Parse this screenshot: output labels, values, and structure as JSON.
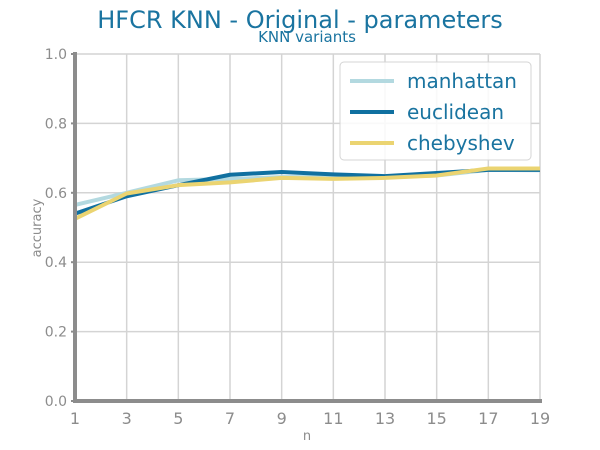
{
  "chart_data": {
    "type": "line",
    "title": "HFCR KNN - Original - parameters",
    "subtitle": "KNN variants",
    "xlabel": "n",
    "ylabel": "accuracy",
    "x": [
      1,
      3,
      5,
      7,
      9,
      11,
      13,
      15,
      17,
      19
    ],
    "xlim": [
      1,
      19
    ],
    "ylim": [
      0.0,
      1.0
    ],
    "xticks": [
      "1",
      "3",
      "5",
      "7",
      "9",
      "11",
      "13",
      "15",
      "17",
      "19"
    ],
    "yticks": [
      "0.0",
      "0.2",
      "0.4",
      "0.6",
      "0.8",
      "1.0"
    ],
    "grid": true,
    "legend_position": "top-right",
    "series": [
      {
        "name": "manhattan",
        "color": "#b3d9e0",
        "values": [
          0.565,
          0.6,
          0.636,
          0.64,
          0.645,
          0.645,
          0.645,
          0.65,
          0.666,
          0.665
        ]
      },
      {
        "name": "euclidean",
        "color": "#1070a0",
        "values": [
          0.54,
          0.59,
          0.622,
          0.652,
          0.66,
          0.653,
          0.648,
          0.657,
          0.666,
          0.666
        ]
      },
      {
        "name": "chebyshev",
        "color": "#ebd471",
        "values": [
          0.525,
          0.598,
          0.622,
          0.63,
          0.643,
          0.64,
          0.643,
          0.65,
          0.67,
          0.67
        ]
      }
    ]
  }
}
